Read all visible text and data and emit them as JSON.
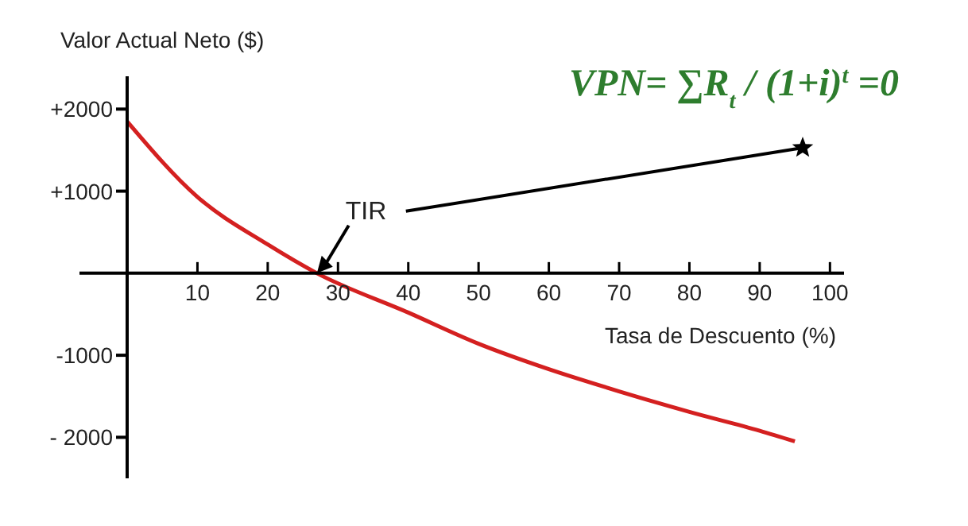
{
  "chart_data": {
    "type": "line",
    "xlabel": "Tasa de Descuento (%)",
    "ylabel": "Valor Actual Neto ($)",
    "x": [
      0,
      10,
      20,
      27,
      40,
      50,
      60,
      70,
      80,
      90,
      95
    ],
    "series": [
      {
        "color": "#d42020",
        "values": [
          1850,
          930,
          350,
          0,
          -480,
          -860,
          -1170,
          -1440,
          -1690,
          -1920,
          -2050
        ]
      }
    ],
    "xlim": [
      0,
      102
    ],
    "xticks": [
      10,
      20,
      30,
      40,
      50,
      60,
      70,
      80,
      90,
      100
    ],
    "ylim": [
      -2500,
      2400
    ],
    "yticks": [
      {
        "value": 2000,
        "label": "+2000"
      },
      {
        "value": 1000,
        "label": "+1000"
      },
      {
        "value": -1000,
        "label": "-1000"
      },
      {
        "value": -2000,
        "label": "- 2000"
      }
    ],
    "annotations": [
      {
        "text": "TIR",
        "x": 27,
        "y": 0
      },
      "VPN= ∑R$_{t}$ / (1+i)$^{t}$ =0"
    ],
    "marker": "none",
    "line_style": "solid"
  }
}
